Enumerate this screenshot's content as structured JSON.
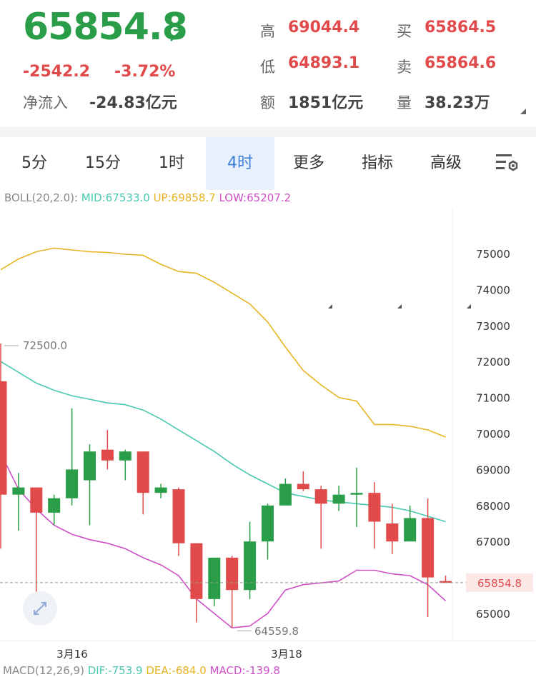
{
  "quote": {
    "price": "65854.8",
    "change": "-2542.2",
    "change_pct": "-3.72%",
    "inflow_label": "净流入",
    "inflow_value": "-24.83亿元",
    "high_label": "高",
    "high_value": "69044.4",
    "low_label": "低",
    "low_value": "64893.1",
    "amount_label": "额",
    "amount_value": "1851亿元",
    "bid_label": "买",
    "bid_value": "65864.5",
    "ask_label": "卖",
    "ask_value": "65864.6",
    "volume_label": "量",
    "volume_value": "38.23万"
  },
  "tabs": [
    "5分",
    "15分",
    "1时",
    "4时",
    "更多",
    "指标",
    "高级"
  ],
  "active_tab": "4时",
  "colors": {
    "up": "#2a9d48",
    "down": "#e14a4a",
    "mid": "#48c9b0",
    "upper": "#e6b422",
    "lower": "#cf4fc7",
    "active": "#3d7fd9"
  },
  "indicator": {
    "name": "BOLL(20,2.0):",
    "mid": "MID:67533.0",
    "up": "UP:69858.7",
    "low": "LOW:65207.2"
  },
  "macd": {
    "name": "MACD(12,26,9)",
    "dif": "DIF:-753.9",
    "dea": "DEA:-684.0",
    "macd": "MACD:-139.8"
  },
  "chart_data": {
    "type": "candlestick",
    "y_ticks": [
      "75000",
      "74000",
      "73000",
      "72000",
      "71000",
      "70000",
      "69000",
      "68000",
      "67000",
      "65000"
    ],
    "x_labels": [
      "3月16",
      "3月18"
    ],
    "ylim": [
      64500,
      75400
    ],
    "high_marker": "72500.0",
    "low_marker": "64559.8",
    "last_price": "65854.8",
    "candles": [
      {
        "o": 71450,
        "c": 68300,
        "h": 72500,
        "l": 66800
      },
      {
        "o": 68300,
        "c": 68500,
        "h": 68900,
        "l": 67300
      },
      {
        "o": 68500,
        "c": 67800,
        "h": 68500,
        "l": 65600
      },
      {
        "o": 67800,
        "c": 68200,
        "h": 68300,
        "l": 67450
      },
      {
        "o": 68200,
        "c": 69000,
        "h": 70700,
        "l": 68000
      },
      {
        "o": 68700,
        "c": 69500,
        "h": 69700,
        "l": 67450
      },
      {
        "o": 69550,
        "c": 69250,
        "h": 70100,
        "l": 69000
      },
      {
        "o": 69250,
        "c": 69500,
        "h": 69550,
        "l": 68700
      },
      {
        "o": 69500,
        "c": 68350,
        "h": 69500,
        "l": 67750
      },
      {
        "o": 68350,
        "c": 68500,
        "h": 68600,
        "l": 68200
      },
      {
        "o": 68450,
        "c": 66950,
        "h": 68500,
        "l": 66600
      },
      {
        "o": 66950,
        "c": 65400,
        "h": 66950,
        "l": 64750
      },
      {
        "o": 65400,
        "c": 66550,
        "h": 66550,
        "l": 65200
      },
      {
        "o": 66550,
        "c": 65650,
        "h": 66600,
        "l": 64600
      },
      {
        "o": 65650,
        "c": 67000,
        "h": 67550,
        "l": 65400
      },
      {
        "o": 67000,
        "c": 68000,
        "h": 68050,
        "l": 66500
      },
      {
        "o": 68000,
        "c": 68600,
        "h": 68750,
        "l": 68000
      },
      {
        "o": 68600,
        "c": 68450,
        "h": 68950,
        "l": 68400
      },
      {
        "o": 68450,
        "c": 68050,
        "h": 68550,
        "l": 66800
      },
      {
        "o": 68050,
        "c": 68300,
        "h": 68550,
        "l": 67850
      },
      {
        "o": 68300,
        "c": 68350,
        "h": 69050,
        "l": 67400
      },
      {
        "o": 68350,
        "c": 67550,
        "h": 68650,
        "l": 66800
      },
      {
        "o": 67500,
        "c": 67000,
        "h": 68050,
        "l": 66650
      },
      {
        "o": 67000,
        "c": 67650,
        "h": 68000,
        "l": 67000
      },
      {
        "o": 67650,
        "c": 66000,
        "h": 68200,
        "l": 64900
      },
      {
        "o": 65900,
        "c": 65850,
        "h": 66050,
        "l": 65850
      }
    ],
    "series": [
      {
        "name": "UP",
        "values": [
          74550,
          74850,
          75050,
          75150,
          75100,
          75050,
          75030,
          74980,
          74950,
          74700,
          74500,
          74450,
          74200,
          73900,
          73600,
          73100,
          72400,
          71750,
          71350,
          71000,
          70900,
          70250,
          70250,
          70200,
          70100,
          69900
        ]
      },
      {
        "name": "MID",
        "values": [
          72000,
          71700,
          71400,
          71200,
          71050,
          70950,
          70850,
          70800,
          70650,
          70400,
          70100,
          69800,
          69500,
          69150,
          68850,
          68600,
          68350,
          68250,
          68150,
          68100,
          68050,
          68000,
          67950,
          67850,
          67700,
          67550
        ]
      },
      {
        "name": "LOW",
        "values": [
          69450,
          68450,
          67900,
          67450,
          67200,
          67050,
          66950,
          66800,
          66550,
          66350,
          66050,
          65400,
          65000,
          64600,
          64650,
          65000,
          65650,
          65800,
          65850,
          65900,
          66200,
          66200,
          66100,
          66050,
          65800,
          65350
        ]
      }
    ]
  }
}
